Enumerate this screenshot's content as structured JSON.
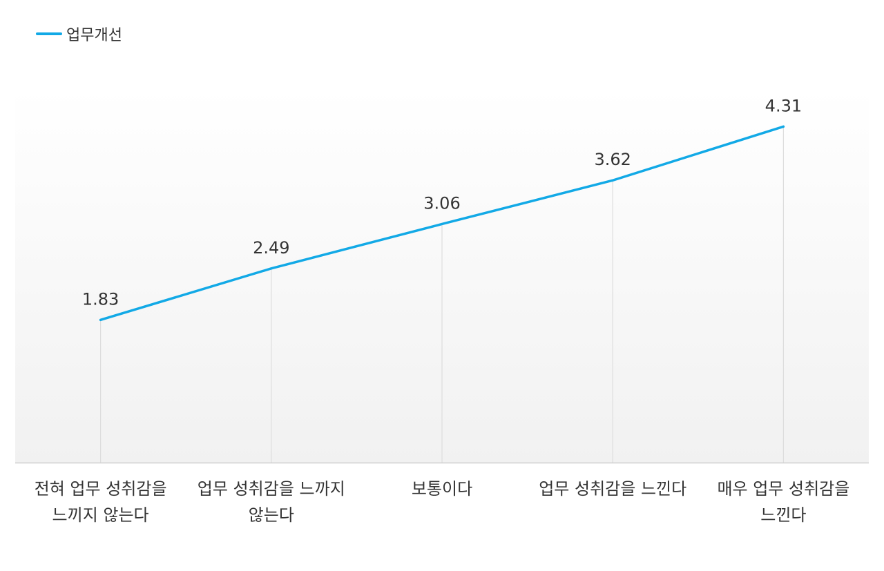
{
  "chart_data": {
    "type": "line",
    "categories": [
      [
        "전혀 업무 성취감을",
        "느끼지 않는다"
      ],
      [
        "업무 성취감을 느까지",
        "않는다"
      ],
      [
        "보통이다"
      ],
      [
        "업무 성취감을 느낀다"
      ],
      [
        "매우 업무 성취감을",
        "느낀다"
      ]
    ],
    "series": [
      {
        "name": "업무개선",
        "values": [
          1.83,
          2.49,
          3.06,
          3.62,
          4.31
        ]
      }
    ],
    "value_labels": [
      "1.83",
      "2.49",
      "3.06",
      "3.62",
      "4.31"
    ],
    "ylim": [
      0,
      4.8
    ],
    "grid": false,
    "drop_lines": true,
    "legend_position": "top-left",
    "colors": {
      "series": "#12A9E6",
      "plot_bg_top": "#FFFFFF",
      "plot_bg_bottom": "#F1F1F1",
      "drop_line": "#DDDDDD",
      "axis": "#CFCFCF",
      "text": "#333333"
    }
  }
}
